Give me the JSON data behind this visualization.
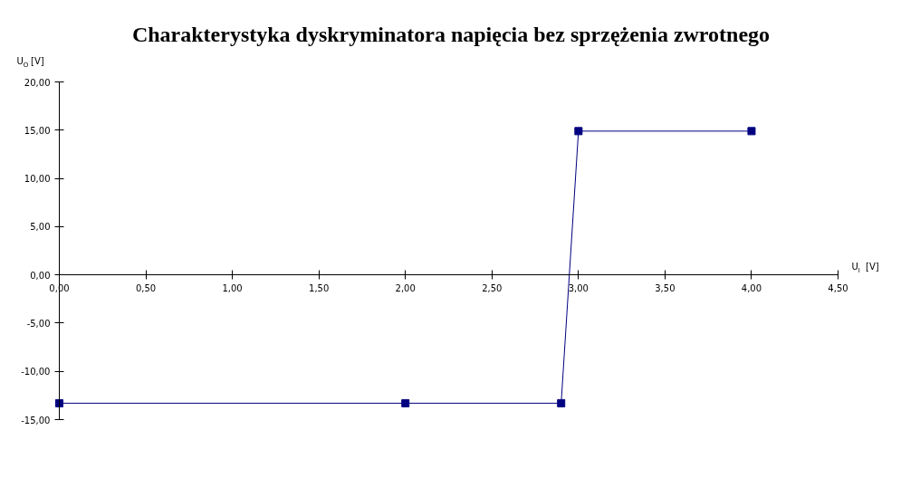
{
  "chart_data": {
    "type": "line",
    "title": "Charakterystyka dyskryminatora napięcia bez sprzężenia zwrotnego",
    "xlabel": "U$_{I}$ [V]",
    "ylabel": "U$_{O}$ [V]",
    "x": [
      0,
      2,
      2.9,
      3,
      4
    ],
    "series": [
      {
        "color": "#000080",
        "values": [
          -13.3,
          -13.3,
          -13.3,
          14.9,
          14.9
        ]
      }
    ],
    "xlim": [
      0,
      4.5
    ],
    "ylim": [
      -15,
      20
    ],
    "xticks": [
      {
        "value": 0,
        "label": "0,00"
      },
      {
        "value": 0.5,
        "label": "0,50"
      },
      {
        "value": 1,
        "label": "1,00"
      },
      {
        "value": 1.5,
        "label": "1,50"
      },
      {
        "value": 2,
        "label": "2,00"
      },
      {
        "value": 2.5,
        "label": "2,50"
      },
      {
        "value": 3,
        "label": "3,00"
      },
      {
        "value": 3.5,
        "label": "3,50"
      },
      {
        "value": 4,
        "label": "4,00"
      },
      {
        "value": 4.5,
        "label": "4,50"
      }
    ],
    "yticks": [
      {
        "value": -15,
        "label": "-15,00"
      },
      {
        "value": -10,
        "label": "-10,00"
      },
      {
        "value": -5,
        "label": "-5,00"
      },
      {
        "value": 0,
        "label": "0,00"
      },
      {
        "value": 5,
        "label": "5,00"
      },
      {
        "value": 10,
        "label": "10,00"
      },
      {
        "value": 15,
        "label": "15,00"
      },
      {
        "value": 20,
        "label": "20,00"
      }
    ],
    "marker": "square",
    "grid": false
  }
}
